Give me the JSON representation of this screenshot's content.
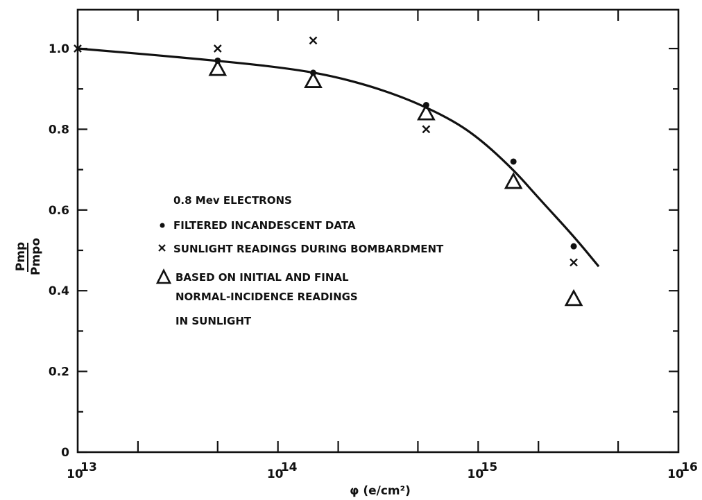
{
  "chart_data": {
    "type": "scatter",
    "xlabel": "φ (e/cm²)",
    "ylabel_numerator": "Pmp",
    "ylabel_denominator": "Pmpo",
    "xscale": "log",
    "xlim": [
      10000000000000.0,
      1e+16
    ],
    "ylim": [
      0,
      1.0
    ],
    "x_tick_labels": [
      {
        "base": "10",
        "exp": "13",
        "value": 10000000000000.0
      },
      {
        "base": "10",
        "exp": "14",
        "value": 100000000000000.0
      },
      {
        "base": "10",
        "exp": "15",
        "value": 1000000000000000.0
      },
      {
        "base": "10",
        "exp": "16",
        "value": 1e+16
      }
    ],
    "y_tick_labels": [
      {
        "label": "0",
        "value": 0
      },
      {
        "label": "0.2",
        "value": 0.2
      },
      {
        "label": "0.4",
        "value": 0.4
      },
      {
        "label": "0.6",
        "value": 0.6
      },
      {
        "label": "0.8",
        "value": 0.8
      },
      {
        "label": "1.0",
        "value": 1.0
      }
    ],
    "legend_title": "0.8 Mev ELECTRONS",
    "legend": [
      {
        "marker": "dot",
        "label": "FILTERED INCANDESCENT DATA"
      },
      {
        "marker": "x",
        "label": "SUNLIGHT READINGS DURING BOMBARDMENT"
      },
      {
        "marker": "triangle",
        "label": "BASED ON INITIAL AND FINAL",
        "continuation": [
          "NORMAL-INCIDENCE READINGS",
          "IN SUNLIGHT"
        ]
      }
    ],
    "series": [
      {
        "marker": "dot",
        "x": [
          50000000000000.0,
          150000000000000.0,
          550000000000000.0,
          1500000000000000.0,
          3000000000000000.0
        ],
        "y": [
          0.97,
          0.94,
          0.86,
          0.72,
          0.51
        ]
      },
      {
        "marker": "x",
        "x": [
          10000000000000.0,
          50000000000000.0,
          150000000000000.0,
          550000000000000.0,
          3000000000000000.0
        ],
        "y": [
          1.0,
          1.0,
          1.02,
          0.8,
          0.47
        ]
      },
      {
        "marker": "triangle",
        "x": [
          50000000000000.0,
          150000000000000.0,
          550000000000000.0,
          1500000000000000.0,
          3000000000000000.0
        ],
        "y": [
          0.95,
          0.92,
          0.84,
          0.67,
          0.38
        ]
      },
      {
        "marker": "line",
        "x": [
          10000000000000.0,
          30000000000000.0,
          100000000000000.0,
          200000000000000.0,
          400000000000000.0,
          700000000000000.0,
          1000000000000000.0,
          1500000000000000.0,
          2000000000000000.0,
          3000000000000000.0,
          4000000000000000.0
        ],
        "y": [
          1.0,
          0.98,
          0.955,
          0.93,
          0.885,
          0.83,
          0.78,
          0.7,
          0.63,
          0.535,
          0.46
        ]
      }
    ]
  }
}
